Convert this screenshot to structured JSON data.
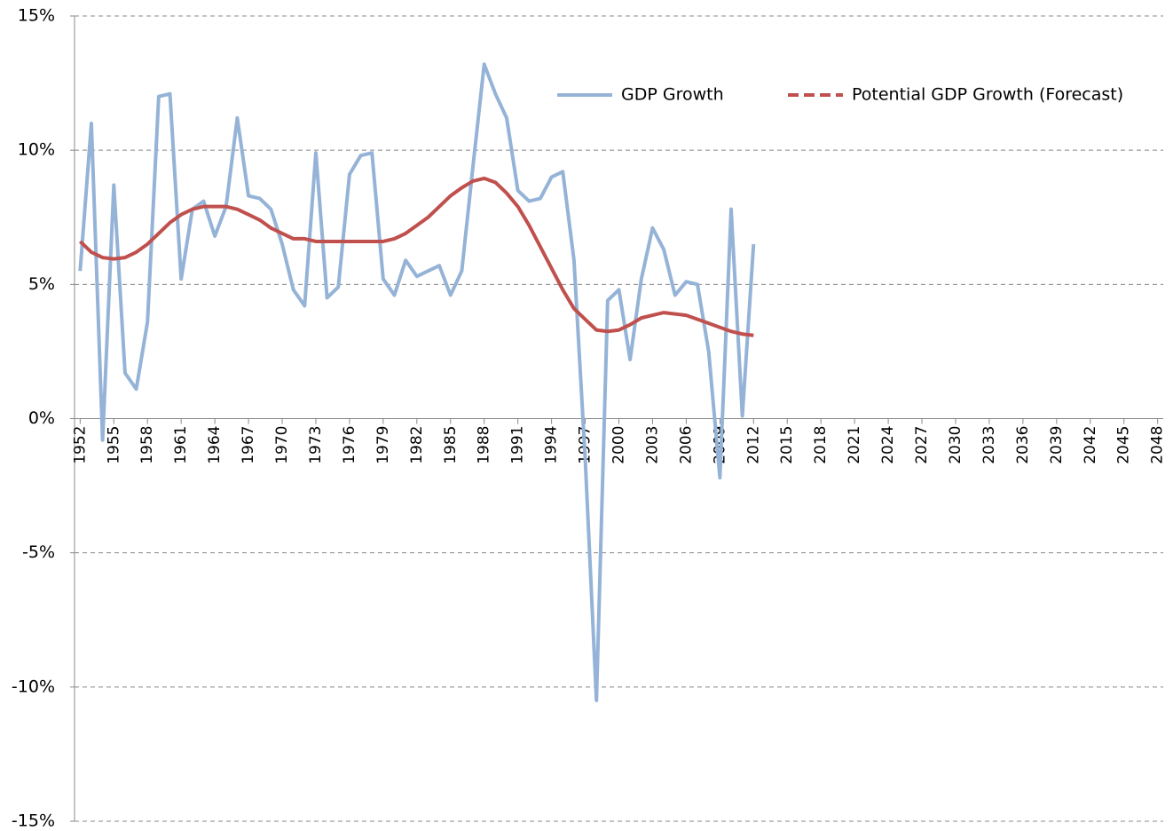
{
  "chart_data": {
    "type": "line",
    "x": [
      1952,
      1953,
      1954,
      1955,
      1956,
      1957,
      1958,
      1959,
      1960,
      1961,
      1962,
      1963,
      1964,
      1965,
      1966,
      1967,
      1968,
      1969,
      1970,
      1971,
      1972,
      1973,
      1974,
      1975,
      1976,
      1977,
      1978,
      1979,
      1980,
      1981,
      1982,
      1983,
      1984,
      1985,
      1986,
      1987,
      1988,
      1989,
      1990,
      1991,
      1992,
      1993,
      1994,
      1995,
      1996,
      1997,
      1998,
      1999,
      2000,
      2001,
      2002,
      2003,
      2004,
      2005,
      2006,
      2007,
      2008,
      2009,
      2010,
      2011,
      2012
    ],
    "series": [
      {
        "name": "GDP Growth",
        "color": "#95b3d7",
        "values": [
          5.5,
          11.0,
          -0.8,
          8.7,
          1.7,
          1.1,
          3.6,
          12.0,
          12.1,
          5.2,
          7.8,
          8.1,
          6.8,
          7.9,
          11.2,
          8.3,
          8.2,
          7.8,
          6.5,
          4.8,
          4.2,
          9.9,
          4.5,
          4.9,
          9.1,
          9.8,
          9.9,
          5.2,
          4.6,
          5.9,
          5.3,
          5.5,
          5.7,
          4.6,
          5.5,
          9.4,
          13.2,
          12.1,
          11.2,
          8.5,
          8.1,
          8.2,
          9.0,
          9.2,
          5.9,
          -1.5,
          -10.5,
          4.4,
          4.8,
          2.2,
          5.2,
          7.1,
          6.3,
          4.6,
          5.1,
          5.0,
          2.5,
          -2.2,
          7.8,
          0.1,
          6.5
        ]
      },
      {
        "name": "Potential GDP Growth (Forecast)",
        "color": "#c0504d",
        "values": [
          6.6,
          6.2,
          6.0,
          5.95,
          6.0,
          6.2,
          6.5,
          6.9,
          7.3,
          7.6,
          7.8,
          7.9,
          7.9,
          7.9,
          7.8,
          7.6,
          7.4,
          7.1,
          6.9,
          6.7,
          6.7,
          6.6,
          6.6,
          6.6,
          6.6,
          6.6,
          6.6,
          6.6,
          6.7,
          6.9,
          7.2,
          7.5,
          7.9,
          8.3,
          8.6,
          8.85,
          8.95,
          8.8,
          8.4,
          7.9,
          7.2,
          6.4,
          5.6,
          4.8,
          4.1,
          3.7,
          3.3,
          3.25,
          3.3,
          3.5,
          3.75,
          3.85,
          3.95,
          3.9,
          3.85,
          3.7,
          3.55,
          3.4,
          3.25,
          3.15,
          3.1
        ]
      }
    ],
    "xlim": [
      1951.5,
      2048.5
    ],
    "xticks": [
      1952,
      1955,
      1958,
      1961,
      1964,
      1967,
      1970,
      1973,
      1976,
      1979,
      1982,
      1985,
      1988,
      1991,
      1994,
      1997,
      2000,
      2003,
      2006,
      2009,
      2012,
      2015,
      2018,
      2021,
      2024,
      2027,
      2030,
      2033,
      2036,
      2039,
      2042,
      2045,
      2048
    ],
    "ylim": [
      -15,
      15
    ],
    "yticks": [
      {
        "value": -15,
        "label": "-15%"
      },
      {
        "value": -10,
        "label": "-10%"
      },
      {
        "value": -5,
        "label": "-5%"
      },
      {
        "value": 0,
        "label": "0%"
      },
      {
        "value": 5,
        "label": "5%"
      },
      {
        "value": 10,
        "label": "10%"
      },
      {
        "value": 15,
        "label": "15%"
      }
    ],
    "grid": true,
    "legend": "top-right"
  }
}
